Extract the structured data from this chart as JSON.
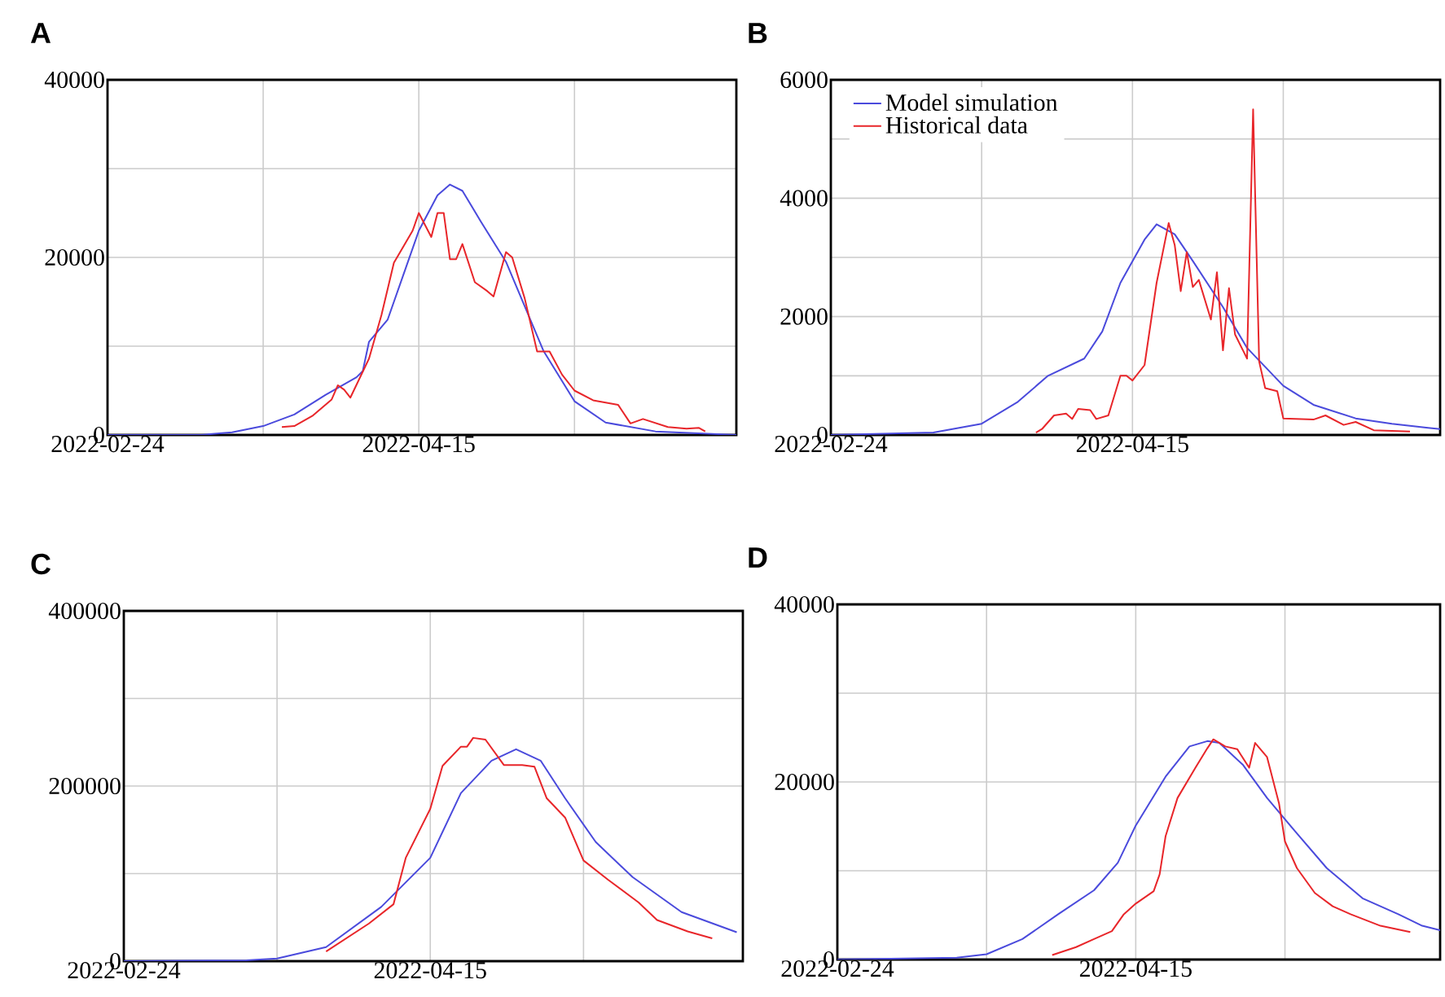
{
  "chart_data": [
    {
      "type": "line",
      "title": "A",
      "grid": true,
      "xlim": [
        "2022-02-24",
        "2022-06-05"
      ],
      "ylim": [
        0,
        40000
      ],
      "xticks": [
        {
          "value": "2022-02-24",
          "label": "2022-02-24"
        },
        {
          "value": "2022-03-21",
          "label": null
        },
        {
          "value": "2022-04-15",
          "label": "2022-04-15"
        },
        {
          "value": "2022-05-10",
          "label": null
        }
      ],
      "yticks": [
        0,
        {
          "value": 10000,
          "label": null
        },
        20000,
        {
          "value": 30000,
          "label": null
        },
        40000
      ],
      "series": [
        {
          "color": "#4a4adc",
          "x": [
            "2022-02-24",
            "2022-03-11",
            "2022-03-16",
            "2022-03-21",
            "2022-03-26",
            "2022-03-31",
            "2022-04-05",
            "2022-04-06",
            "2022-04-07",
            "2022-04-10",
            "2022-04-13",
            "2022-04-15",
            "2022-04-18",
            "2022-04-20",
            "2022-04-22",
            "2022-04-25",
            "2022-04-29",
            "2022-05-02",
            "2022-05-05",
            "2022-05-10",
            "2022-05-15",
            "2022-05-23",
            "2022-06-05"
          ],
          "values": [
            0,
            0,
            300,
            1000,
            2300,
            4500,
            6500,
            7200,
            10500,
            13000,
            19000,
            23000,
            27000,
            28200,
            27500,
            24000,
            19500,
            14500,
            9500,
            3800,
            1400,
            400,
            0
          ]
        },
        {
          "color": "#e8262a",
          "x": [
            "2022-03-24",
            "2022-03-26",
            "2022-03-29",
            "2022-04-01",
            "2022-04-02",
            "2022-04-03",
            "2022-04-04",
            "2022-04-07",
            "2022-04-09",
            "2022-04-11",
            "2022-04-12",
            "2022-04-14",
            "2022-04-15",
            "2022-04-17",
            "2022-04-18",
            "2022-04-19",
            "2022-04-20",
            "2022-04-21",
            "2022-04-22",
            "2022-04-24",
            "2022-04-26",
            "2022-04-27",
            "2022-04-29",
            "2022-04-30",
            "2022-05-02",
            "2022-05-04",
            "2022-05-06",
            "2022-05-08",
            "2022-05-10",
            "2022-05-13",
            "2022-05-17",
            "2022-05-19",
            "2022-05-21",
            "2022-05-25",
            "2022-05-28",
            "2022-05-30",
            "2022-05-31"
          ],
          "values": [
            900,
            1000,
            2200,
            4000,
            5600,
            5100,
            4200,
            8600,
            13500,
            19400,
            20600,
            23000,
            25000,
            22300,
            25000,
            25000,
            19800,
            19800,
            21500,
            17200,
            16200,
            15600,
            20600,
            20000,
            15400,
            9400,
            9400,
            6800,
            5000,
            3900,
            3400,
            1300,
            1800,
            900,
            700,
            800,
            400
          ]
        }
      ]
    },
    {
      "type": "line",
      "title": "B",
      "grid": true,
      "legend": "top left",
      "xlim": [
        "2022-02-24",
        "2022-06-05"
      ],
      "ylim": [
        0,
        6000
      ],
      "xticks": [
        {
          "value": "2022-02-24",
          "label": "2022-02-24"
        },
        {
          "value": "2022-03-21",
          "label": null
        },
        {
          "value": "2022-04-15",
          "label": "2022-04-15"
        },
        {
          "value": "2022-05-10",
          "label": null
        }
      ],
      "yticks": [
        0,
        {
          "value": 1000,
          "label": null
        },
        2000,
        {
          "value": 3000,
          "label": null
        },
        4000,
        {
          "value": 5000,
          "label": null
        },
        6000
      ],
      "series": [
        {
          "name": "Model simulation",
          "color": "#4a4adc",
          "x": [
            "2022-02-24",
            "2022-03-13",
            "2022-03-21",
            "2022-03-27",
            "2022-04-01",
            "2022-04-07",
            "2022-04-10",
            "2022-04-13",
            "2022-04-17",
            "2022-04-19",
            "2022-04-22",
            "2022-04-25",
            "2022-04-30",
            "2022-05-04",
            "2022-05-10",
            "2022-05-15",
            "2022-05-22",
            "2022-05-28",
            "2022-06-03",
            "2022-06-05"
          ],
          "values": [
            0,
            40,
            190,
            560,
            1000,
            1290,
            1750,
            2570,
            3300,
            3560,
            3390,
            2940,
            2160,
            1470,
            830,
            510,
            280,
            190,
            120,
            100
          ]
        },
        {
          "name": "Historical data",
          "color": "#e8262a",
          "x": [
            "2022-03-30",
            "2022-03-31",
            "2022-04-02",
            "2022-04-04",
            "2022-04-05",
            "2022-04-06",
            "2022-04-08",
            "2022-04-09",
            "2022-04-11",
            "2022-04-13",
            "2022-04-14",
            "2022-04-15",
            "2022-04-17",
            "2022-04-19",
            "2022-04-21",
            "2022-04-22",
            "2022-04-23",
            "2022-04-24",
            "2022-04-25",
            "2022-04-26",
            "2022-04-28",
            "2022-04-29",
            "2022-04-30",
            "2022-05-01",
            "2022-05-02",
            "2022-05-04",
            "2022-05-05",
            "2022-05-06",
            "2022-05-07",
            "2022-05-09",
            "2022-05-10",
            "2022-05-15",
            "2022-05-17",
            "2022-05-20",
            "2022-05-22",
            "2022-05-25",
            "2022-05-31"
          ],
          "values": [
            40,
            100,
            330,
            360,
            270,
            440,
            420,
            270,
            330,
            1000,
            1000,
            920,
            1180,
            2570,
            3580,
            3210,
            2430,
            3090,
            2500,
            2620,
            1950,
            2750,
            1430,
            2480,
            1700,
            1290,
            5500,
            1240,
            790,
            740,
            280,
            260,
            330,
            170,
            220,
            80,
            60
          ]
        }
      ]
    },
    {
      "type": "line",
      "title": "C",
      "grid": true,
      "xlim": [
        "2022-02-24",
        "2022-06-05"
      ],
      "ylim": [
        0,
        400000
      ],
      "xticks": [
        {
          "value": "2022-02-24",
          "label": "2022-02-24"
        },
        {
          "value": "2022-03-21",
          "label": null
        },
        {
          "value": "2022-04-15",
          "label": "2022-04-15"
        },
        {
          "value": "2022-05-10",
          "label": null
        }
      ],
      "yticks": [
        0,
        {
          "value": 100000,
          "label": null
        },
        200000,
        {
          "value": 300000,
          "label": null
        },
        400000
      ],
      "series": [
        {
          "color": "#4a4adc",
          "x": [
            "2022-02-24",
            "2022-03-16",
            "2022-03-21",
            "2022-03-29",
            "2022-04-07",
            "2022-04-15",
            "2022-04-20",
            "2022-04-25",
            "2022-04-29",
            "2022-05-03",
            "2022-05-07",
            "2022-05-12",
            "2022-05-18",
            "2022-05-26",
            "2022-06-04"
          ],
          "values": [
            0,
            1000,
            3000,
            16000,
            62000,
            118000,
            192000,
            229000,
            242000,
            229000,
            186000,
            136000,
            96000,
            56000,
            33000
          ]
        },
        {
          "color": "#e8262a",
          "x": [
            "2022-03-29",
            "2022-04-05",
            "2022-04-09",
            "2022-04-11",
            "2022-04-15",
            "2022-04-17",
            "2022-04-20",
            "2022-04-21",
            "2022-04-22",
            "2022-04-24",
            "2022-04-27",
            "2022-04-30",
            "2022-05-02",
            "2022-05-04",
            "2022-05-07",
            "2022-05-10",
            "2022-05-14",
            "2022-05-19",
            "2022-05-22",
            "2022-05-27",
            "2022-05-31"
          ],
          "values": [
            11000,
            43000,
            65000,
            118000,
            174000,
            223000,
            245000,
            245000,
            255000,
            253000,
            224000,
            224000,
            222000,
            186000,
            164000,
            115000,
            93000,
            67000,
            47000,
            34000,
            26000
          ]
        }
      ]
    },
    {
      "type": "line",
      "title": "D",
      "grid": true,
      "xlim": [
        "2022-02-24",
        "2022-06-05"
      ],
      "ylim": [
        0,
        40000
      ],
      "xticks": [
        {
          "value": "2022-02-24",
          "label": "2022-02-24"
        },
        {
          "value": "2022-03-21",
          "label": null
        },
        {
          "value": "2022-04-15",
          "label": "2022-04-15"
        },
        {
          "value": "2022-05-10",
          "label": null
        }
      ],
      "yticks": [
        0,
        {
          "value": 10000,
          "label": null
        },
        20000,
        {
          "value": 30000,
          "label": null
        },
        40000
      ],
      "series": [
        {
          "color": "#4a4adc",
          "x": [
            "2022-02-24",
            "2022-03-16",
            "2022-03-21",
            "2022-03-27",
            "2022-04-02",
            "2022-04-08",
            "2022-04-12",
            "2022-04-15",
            "2022-04-20",
            "2022-04-24",
            "2022-04-27",
            "2022-04-29",
            "2022-05-03",
            "2022-05-07",
            "2022-05-12",
            "2022-05-17",
            "2022-05-23",
            "2022-05-29",
            "2022-06-02",
            "2022-06-05"
          ],
          "values": [
            0,
            200,
            600,
            2300,
            5100,
            7800,
            10900,
            15100,
            20600,
            24000,
            24600,
            24400,
            21900,
            18200,
            14200,
            10300,
            6900,
            5100,
            3800,
            3300
          ]
        },
        {
          "color": "#e8262a",
          "x": [
            "2022-04-01",
            "2022-04-05",
            "2022-04-08",
            "2022-04-11",
            "2022-04-13",
            "2022-04-15",
            "2022-04-18",
            "2022-04-19",
            "2022-04-20",
            "2022-04-22",
            "2022-04-25",
            "2022-04-27",
            "2022-04-28",
            "2022-04-30",
            "2022-05-02",
            "2022-05-04",
            "2022-05-05",
            "2022-05-07",
            "2022-05-09",
            "2022-05-10",
            "2022-05-12",
            "2022-05-15",
            "2022-05-18",
            "2022-05-21",
            "2022-05-26",
            "2022-05-31"
          ],
          "values": [
            500,
            1400,
            2300,
            3200,
            5100,
            6300,
            7700,
            9600,
            13900,
            18200,
            21600,
            23800,
            24800,
            24000,
            23700,
            21600,
            24400,
            22800,
            17600,
            13300,
            10300,
            7500,
            6000,
            5100,
            3800,
            3100
          ]
        }
      ]
    }
  ]
}
